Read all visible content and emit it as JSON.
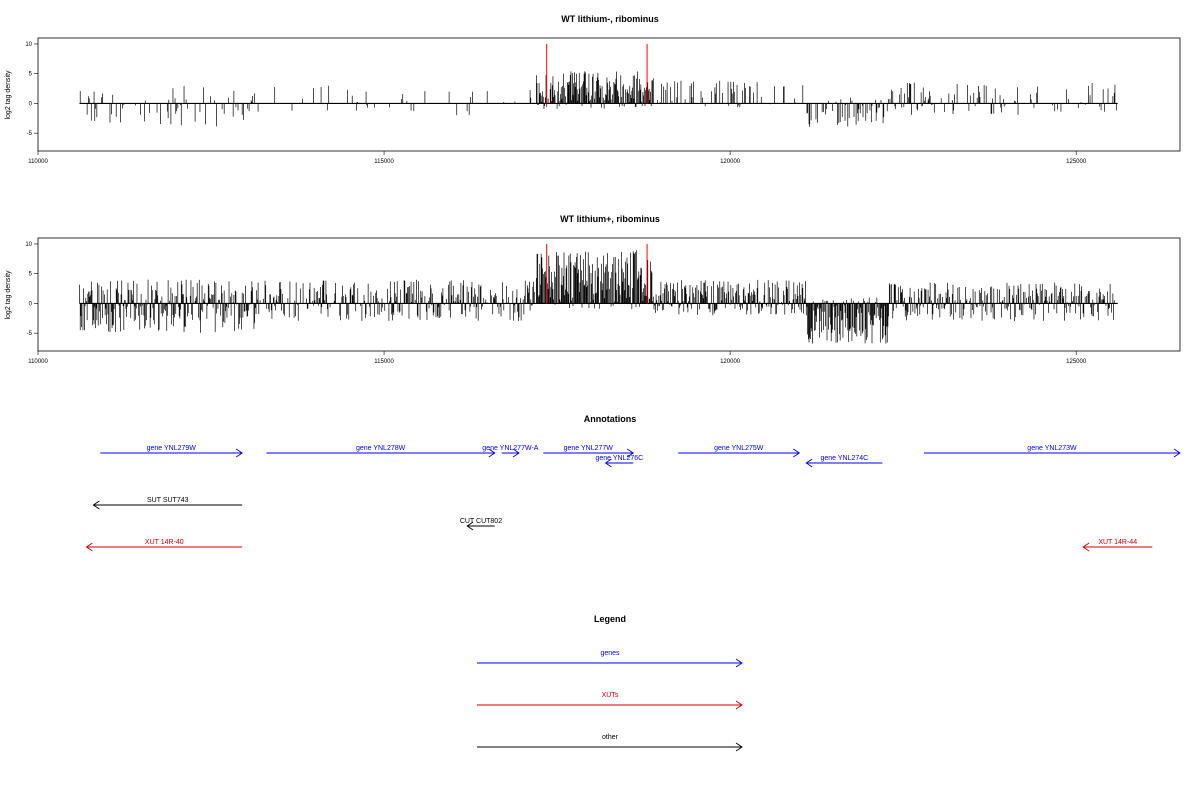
{
  "chart_data": [
    {
      "type": "bar",
      "title": "WT lithium-, ribominus",
      "ylabel": "log2 tag density",
      "xlabel": "",
      "xlim": [
        110000,
        126500
      ],
      "ylim": [
        -8,
        11
      ],
      "x_ticks": [
        "110000",
        "115000",
        "120000",
        "125000"
      ],
      "y_ticks": [
        "10",
        "5",
        "0",
        "-5"
      ],
      "data_range": [
        110600,
        125600
      ],
      "markers": [
        117350,
        118800
      ],
      "marker_color": "#ff0000",
      "grid": false,
      "legend": "none",
      "regions": [
        {
          "start": 110600,
          "end": 113200,
          "density": 0.25,
          "pos_max": 3,
          "neg_max": 4
        },
        {
          "start": 113200,
          "end": 117200,
          "density": 0.1,
          "pos_max": 3,
          "neg_max": 2
        },
        {
          "start": 117200,
          "end": 118900,
          "density": 0.95,
          "pos_max": 5.5,
          "neg_max": 1
        },
        {
          "start": 118900,
          "end": 121100,
          "density": 0.2,
          "pos_max": 4,
          "neg_max": 1
        },
        {
          "start": 121100,
          "end": 122300,
          "density": 0.35,
          "pos_max": 1,
          "neg_max": 4
        },
        {
          "start": 122300,
          "end": 125600,
          "density": 0.35,
          "pos_max": 3.5,
          "neg_max": 2
        }
      ]
    },
    {
      "type": "bar",
      "title": "WT lithium+, ribominus",
      "ylabel": "log2 tag density",
      "xlabel": "",
      "xlim": [
        110000,
        126500
      ],
      "ylim": [
        -8,
        11
      ],
      "x_ticks": [
        "110000",
        "115000",
        "120000",
        "125000"
      ],
      "y_ticks": [
        "10",
        "5",
        "0",
        "-5"
      ],
      "data_range": [
        110600,
        125600
      ],
      "markers": [
        117350,
        118800
      ],
      "marker_color": "#ff0000",
      "grid": false,
      "legend": "none",
      "regions": [
        {
          "start": 110600,
          "end": 113200,
          "density": 0.9,
          "pos_max": 4,
          "neg_max": 5
        },
        {
          "start": 113200,
          "end": 117200,
          "density": 0.7,
          "pos_max": 4,
          "neg_max": 3
        },
        {
          "start": 117200,
          "end": 118900,
          "density": 1.0,
          "pos_max": 9,
          "neg_max": 1
        },
        {
          "start": 118900,
          "end": 121100,
          "density": 0.9,
          "pos_max": 4,
          "neg_max": 2
        },
        {
          "start": 121100,
          "end": 122300,
          "density": 1.0,
          "pos_max": 1,
          "neg_max": 7
        },
        {
          "start": 122300,
          "end": 125600,
          "density": 0.8,
          "pos_max": 3.5,
          "neg_max": 3
        }
      ]
    }
  ],
  "annotations": {
    "title": "Annotations",
    "xlim": [
      110000,
      126500
    ],
    "items": [
      {
        "label": "gene YNL279W",
        "start": 110900,
        "end": 112950,
        "strand": "+",
        "row": 0,
        "color": "#0000ff"
      },
      {
        "label": "gene YNL278W",
        "start": 113300,
        "end": 116600,
        "strand": "+",
        "row": 0,
        "color": "#0000ff"
      },
      {
        "label": "gene YNL277W-A",
        "start": 116700,
        "end": 116950,
        "strand": "+",
        "row": 0,
        "color": "#0000ff"
      },
      {
        "label": "gene YNL277W",
        "start": 117300,
        "end": 118600,
        "strand": "+",
        "row": 0,
        "color": "#0000ff"
      },
      {
        "label": "gene YNL276C",
        "start": 118200,
        "end": 118600,
        "strand": "-",
        "row": 1,
        "color": "#0000ff"
      },
      {
        "label": "gene YNL275W",
        "start": 119250,
        "end": 121000,
        "strand": "+",
        "row": 0,
        "color": "#0000ff"
      },
      {
        "label": "gene YNL274C",
        "start": 121100,
        "end": 122200,
        "strand": "-",
        "row": 1,
        "color": "#0000ff"
      },
      {
        "label": "gene YNL273W",
        "start": 122800,
        "end": 126500,
        "strand": "+",
        "row": 0,
        "color": "#0000ff"
      },
      {
        "label": "SUT SUT743",
        "start": 110800,
        "end": 112950,
        "strand": "-",
        "row": 2,
        "color": "#000000"
      },
      {
        "label": "CUT CUT802",
        "start": 116200,
        "end": 116600,
        "strand": "-",
        "row": 3,
        "color": "#000000"
      },
      {
        "label": "XUT 14R-40",
        "start": 110700,
        "end": 112950,
        "strand": "-",
        "row": 4,
        "color": "#cc0000"
      },
      {
        "label": "XUT 14R-44",
        "start": 125100,
        "end": 126100,
        "strand": "-",
        "row": 4,
        "color": "#cc0000"
      }
    ]
  },
  "legend": {
    "title": "Legend",
    "items": [
      {
        "label": "genes",
        "color": "#0000ff"
      },
      {
        "label": "XUTs",
        "color": "#cc0000"
      },
      {
        "label": "other",
        "color": "#000000"
      }
    ]
  }
}
